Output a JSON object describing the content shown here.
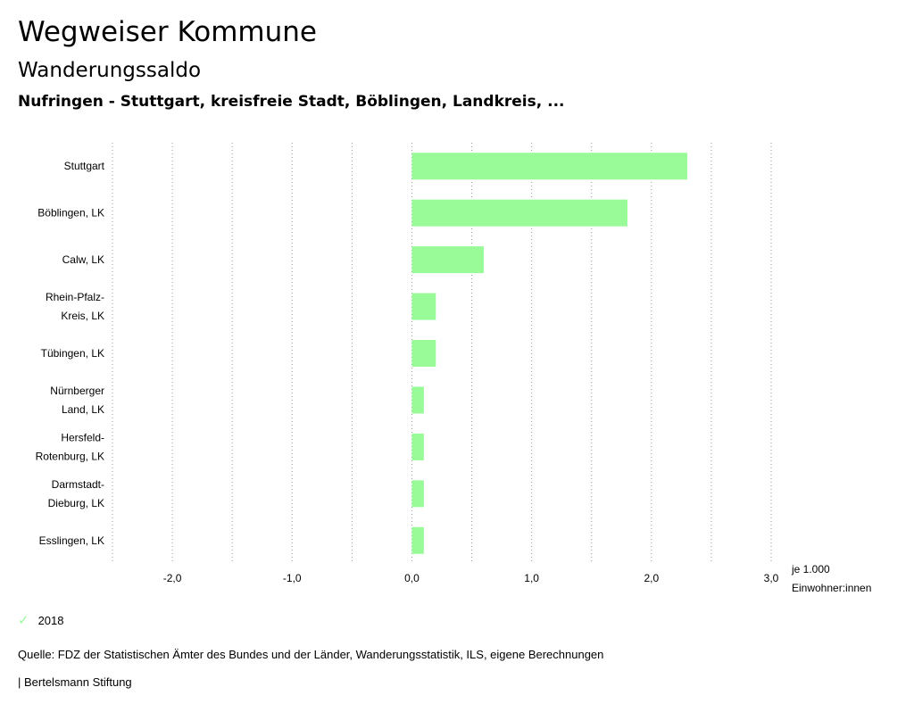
{
  "header": {
    "title": "Wegweiser Kommune",
    "subtitle": "Wanderungssaldo",
    "region": "Nufringen - Stuttgart, kreisfreie Stadt, Böblingen, Landkreis, ..."
  },
  "chart_data": {
    "type": "bar",
    "orientation": "horizontal",
    "categories": [
      [
        "Stuttgart"
      ],
      [
        "Böblingen, LK"
      ],
      [
        "Calw, LK"
      ],
      [
        "Rhein-Pfalz-",
        "Kreis, LK"
      ],
      [
        "Tübingen, LK"
      ],
      [
        "Nürnberger",
        "Land, LK"
      ],
      [
        "Hersfeld-",
        "Rotenburg, LK"
      ],
      [
        "Darmstadt-",
        "Dieburg, LK"
      ],
      [
        "Esslingen, LK"
      ]
    ],
    "series": [
      {
        "name": "2018",
        "values": [
          2.3,
          1.8,
          0.6,
          0.2,
          0.2,
          0.1,
          0.1,
          0.1,
          0.1
        ],
        "color": "#98FB98"
      }
    ],
    "xlim": [
      -2.5,
      3.0
    ],
    "ticks": [
      {
        "value": -2.0,
        "label": "-2,0"
      },
      {
        "value": -1.0,
        "label": "-1,0"
      },
      {
        "value": 0.0,
        "label": "0,0"
      },
      {
        "value": 1.0,
        "label": "1,0"
      },
      {
        "value": 2.0,
        "label": "2,0"
      },
      {
        "value": 3.0,
        "label": "3,0"
      }
    ],
    "gridlines": [
      -2.5,
      -2.0,
      -1.5,
      -1.0,
      -0.5,
      0.0,
      0.5,
      1.0,
      1.5,
      2.0,
      2.5,
      3.0
    ],
    "unit_label": [
      "je 1.000",
      "Einwohner:innen"
    ],
    "grid": true,
    "legend_position": "bottom-left"
  },
  "legend": {
    "label": "2018",
    "icon": "check-icon"
  },
  "source": "Quelle: FDZ der Statistischen Ämter des Bundes und der Länder, Wanderungsstatistik, ILS, eigene Berechnungen",
  "footer": "| Bertelsmann Stiftung"
}
